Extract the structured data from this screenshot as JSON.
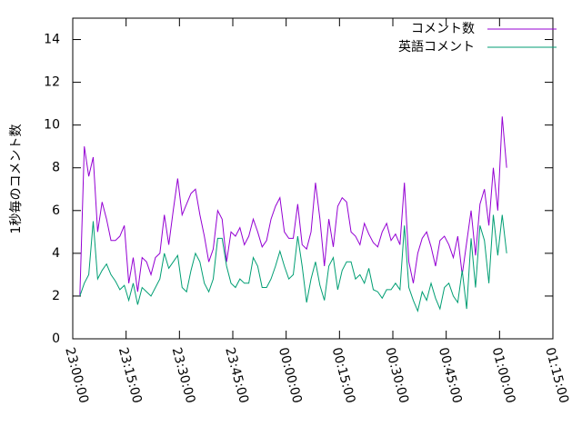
{
  "chart_data": {
    "type": "line",
    "y_label": "1秒毎のコメント数",
    "legend": "top-right",
    "x": [
      2,
      3.25,
      4.5,
      5.75,
      7,
      8.25,
      9.5,
      10.75,
      12,
      13.25,
      14.5,
      15.75,
      17,
      18.25,
      19.5,
      20.75,
      22,
      23.25,
      24.5,
      25.75,
      27,
      28.25,
      29.5,
      30.75,
      32,
      33.25,
      34.5,
      35.75,
      37,
      38.25,
      39.5,
      40.75,
      42,
      43.25,
      44.5,
      45.75,
      47,
      48.25,
      49.5,
      50.75,
      52,
      53.25,
      54.5,
      55.75,
      57,
      58.25,
      59.5,
      60.75,
      62,
      63.25,
      64.5,
      65.75,
      67,
      68.25,
      69.5,
      70.75,
      72,
      73.25,
      74.5,
      75.75,
      77,
      78.25,
      79.5,
      80.75,
      82,
      83.25,
      84.5,
      85.75,
      87,
      88.25,
      89.5,
      90.75,
      92,
      93.25,
      94.5,
      95.75,
      97,
      98.25,
      99.5,
      100.75,
      102,
      103.25,
      104.5,
      105.75,
      107,
      108.25,
      109.5,
      110.75,
      112,
      113.25,
      114.5,
      115.75,
      117,
      118.25,
      119.5,
      120.75,
      122
    ],
    "series": [
      {
        "name": "コメント数",
        "color": "#9400d3",
        "values": [
          2.0,
          9.0,
          7.6,
          8.5,
          5.0,
          6.4,
          5.6,
          4.6,
          4.6,
          4.8,
          5.3,
          2.6,
          3.8,
          2.2,
          3.8,
          3.6,
          3.0,
          3.8,
          4.0,
          5.8,
          4.4,
          6.0,
          7.5,
          5.8,
          6.3,
          6.8,
          7.0,
          5.8,
          4.8,
          3.6,
          4.2,
          6.0,
          5.6,
          3.6,
          5.0,
          4.8,
          5.2,
          4.4,
          4.8,
          5.6,
          5.0,
          4.3,
          4.6,
          5.6,
          6.2,
          6.6,
          5.0,
          4.7,
          4.7,
          6.3,
          4.4,
          4.2,
          5.0,
          7.3,
          5.6,
          3.4,
          5.6,
          4.3,
          6.2,
          6.6,
          6.4,
          5.0,
          4.8,
          4.4,
          5.4,
          4.9,
          4.5,
          4.3,
          5.0,
          5.4,
          4.6,
          4.9,
          4.4,
          7.3,
          3.6,
          2.6,
          4.0,
          4.7,
          5.0,
          4.3,
          3.4,
          4.6,
          4.8,
          4.4,
          3.8,
          4.8,
          3.0,
          4.5,
          6.0,
          3.9,
          6.3,
          7.0,
          5.3,
          8.0,
          6.0,
          10.4,
          8.0
        ]
      },
      {
        "name": "英語コメント",
        "color": "#009e73",
        "values": [
          2.0,
          2.6,
          3.0,
          5.5,
          2.8,
          3.2,
          3.5,
          3.0,
          2.7,
          2.3,
          2.5,
          1.8,
          2.6,
          1.6,
          2.4,
          2.2,
          2.0,
          2.4,
          2.8,
          4.0,
          3.3,
          3.6,
          3.9,
          2.4,
          2.2,
          3.2,
          4.0,
          3.6,
          2.6,
          2.2,
          2.8,
          4.7,
          4.7,
          3.4,
          2.6,
          2.4,
          2.8,
          2.6,
          2.6,
          3.8,
          3.4,
          2.4,
          2.4,
          2.8,
          3.4,
          4.1,
          3.4,
          2.8,
          3.0,
          4.8,
          3.4,
          1.7,
          2.8,
          3.6,
          2.5,
          1.8,
          3.4,
          3.8,
          2.3,
          3.2,
          3.6,
          3.6,
          2.8,
          3.0,
          2.6,
          3.3,
          2.3,
          2.2,
          1.9,
          2.3,
          2.3,
          2.6,
          2.3,
          5.3,
          2.4,
          1.8,
          1.3,
          2.2,
          1.8,
          2.6,
          1.9,
          1.4,
          2.4,
          2.6,
          2.0,
          1.7,
          3.2,
          1.4,
          4.7,
          2.4,
          5.3,
          4.6,
          2.6,
          5.8,
          3.9,
          5.8,
          4.0
        ]
      }
    ],
    "xlim": [
      0,
      135
    ],
    "xticks": [
      {
        "value": 0,
        "label": "23:00:00"
      },
      {
        "value": 15,
        "label": "23:15:00"
      },
      {
        "value": 30,
        "label": "23:30:00"
      },
      {
        "value": 45,
        "label": "23:45:00"
      },
      {
        "value": 60,
        "label": "00:00:00"
      },
      {
        "value": 75,
        "label": "00:15:00"
      },
      {
        "value": 90,
        "label": "00:30:00"
      },
      {
        "value": 105,
        "label": "00:45:00"
      },
      {
        "value": 120,
        "label": "01:00:00"
      },
      {
        "value": 135,
        "label": "01:15:00"
      }
    ],
    "ylim": [
      0,
      15
    ],
    "yticks": [
      0,
      2,
      4,
      6,
      8,
      10,
      12,
      14
    ]
  }
}
